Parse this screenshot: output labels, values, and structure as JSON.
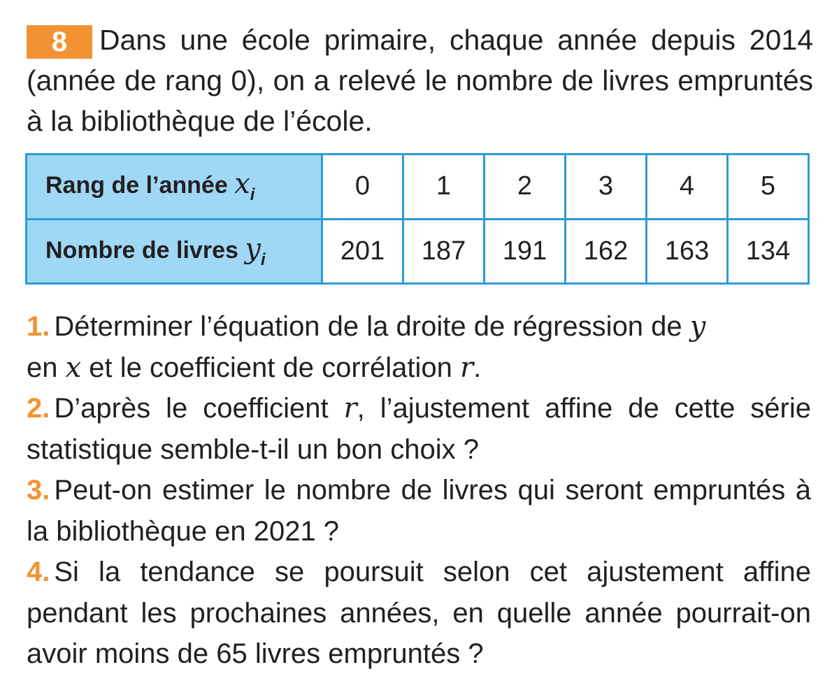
{
  "exercise": {
    "number": "8",
    "intro": "Dans une école primaire, chaque année depuis 2014 (année de rang 0), on a relevé le nombre de livres emprun­tés à la bibliothèque de l’école."
  },
  "table": {
    "row1_label": "Rang de l’année ",
    "row1_var": "x",
    "row1_sub": "i",
    "row2_label": "Nombre de livres ",
    "row2_var": "y",
    "row2_sub": "i",
    "x": [
      "0",
      "1",
      "2",
      "3",
      "4",
      "5"
    ],
    "y": [
      "201",
      "187",
      "191",
      "162",
      "163",
      "134"
    ]
  },
  "colors": {
    "accent_orange": "#f39233",
    "table_border": "#2e9bd6",
    "table_header_bg": "#9fd8f5"
  },
  "questions": {
    "q1_num": "1.",
    "q1_a": "Déterminer l’équation de la droite de régression de ",
    "q1_y": "y",
    "q1_b": "en ",
    "q1_x": "x",
    "q1_c": " et le coefficient de corrélation ",
    "q1_r": "r",
    "q1_d": ".",
    "q2_num": "2.",
    "q2_a": "D’après le coefficient ",
    "q2_r": "r",
    "q2_b": ", l’ajustement affine de cette série statistique semble-t-il un bon choix ?",
    "q3_num": "3.",
    "q3_text": "Peut-on estimer le nombre de livres qui seront emprun­tés à la bibliothèque en 2021 ?",
    "q4_num": "4.",
    "q4_text": "Si la tendance se poursuit selon cet ajustement affine pendant les prochaines années, en quelle année pour­rait-on avoir moins de 65 livres empruntés ?"
  }
}
